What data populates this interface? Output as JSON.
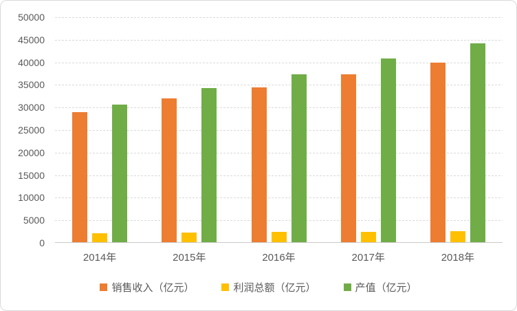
{
  "chart": {
    "background_color": "#FFFFFF",
    "frame_border_color": "#D9D9D9",
    "text_color": "#595959",
    "gridline_color": "#D9D9D9",
    "axis_line_color": "#C9C9C9"
  },
  "chart_data": {
    "type": "bar",
    "title": "",
    "xlabel": "",
    "ylabel": "",
    "categories": [
      "2014年",
      "2015年",
      "2016年",
      "2017年",
      "2018年"
    ],
    "series": [
      {
        "name": "销售收入（亿元）",
        "color": "#ED7D31",
        "values": [
          29000,
          32000,
          34500,
          37300,
          40000
        ]
      },
      {
        "name": "利润总额（亿元）",
        "color": "#FFC000",
        "values": [
          2200,
          2300,
          2400,
          2450,
          2550
        ]
      },
      {
        "name": "产值（亿元）",
        "color": "#70AD47",
        "values": [
          30600,
          34300,
          37400,
          40800,
          44200
        ]
      }
    ],
    "ylim": [
      0,
      50000
    ],
    "yticks": [
      0,
      5000,
      10000,
      15000,
      20000,
      25000,
      30000,
      35000,
      40000,
      45000,
      50000
    ],
    "grid": "horizontal-dashed",
    "legend_position": "bottom"
  }
}
